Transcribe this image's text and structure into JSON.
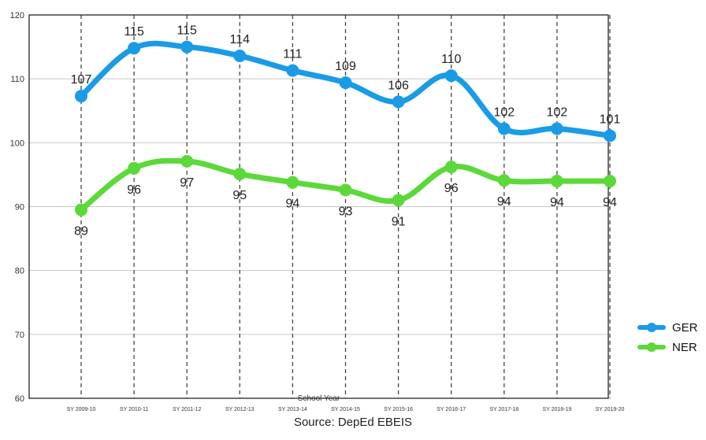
{
  "chart_data": {
    "type": "line",
    "categories": [
      "SY 2009-10",
      "SY 2010-11",
      "SY 2011-12",
      "SY 2012-13",
      "SY 2013-14",
      "SY 2014-15",
      "SY 2015-16",
      "SY 2016-17",
      "SY 2017-18",
      "SY 2018-19",
      "SY 2019-20"
    ],
    "series": [
      {
        "name": "GER",
        "color": "#1a9be6",
        "values": [
          107.3,
          114.8,
          115.0,
          113.6,
          111.3,
          109.4,
          106.4,
          110.5,
          102.2,
          102.2,
          101.1
        ],
        "labels": [
          "107",
          "115",
          "115",
          "114",
          "111",
          "109",
          "106",
          "110",
          "102",
          "102",
          "101"
        ]
      },
      {
        "name": "NER",
        "color": "#5cd93a",
        "values": [
          89.5,
          96.0,
          97.1,
          95.1,
          93.8,
          92.6,
          91.0,
          96.2,
          94.1,
          94.0,
          94.0
        ],
        "labels": [
          "89",
          "96",
          "97",
          "95",
          "94",
          "93",
          "91",
          "96",
          "94",
          "94",
          "94"
        ]
      }
    ],
    "ylim": [
      60,
      120
    ],
    "yticks": [
      "60",
      "70",
      "80",
      "90",
      "100",
      "110",
      "120"
    ],
    "xlabel": "School Year",
    "grid": "horizontal gridlines, dashed vertical category lines",
    "legend": "bottom-right"
  },
  "source": "Source: DepEd EBEIS"
}
